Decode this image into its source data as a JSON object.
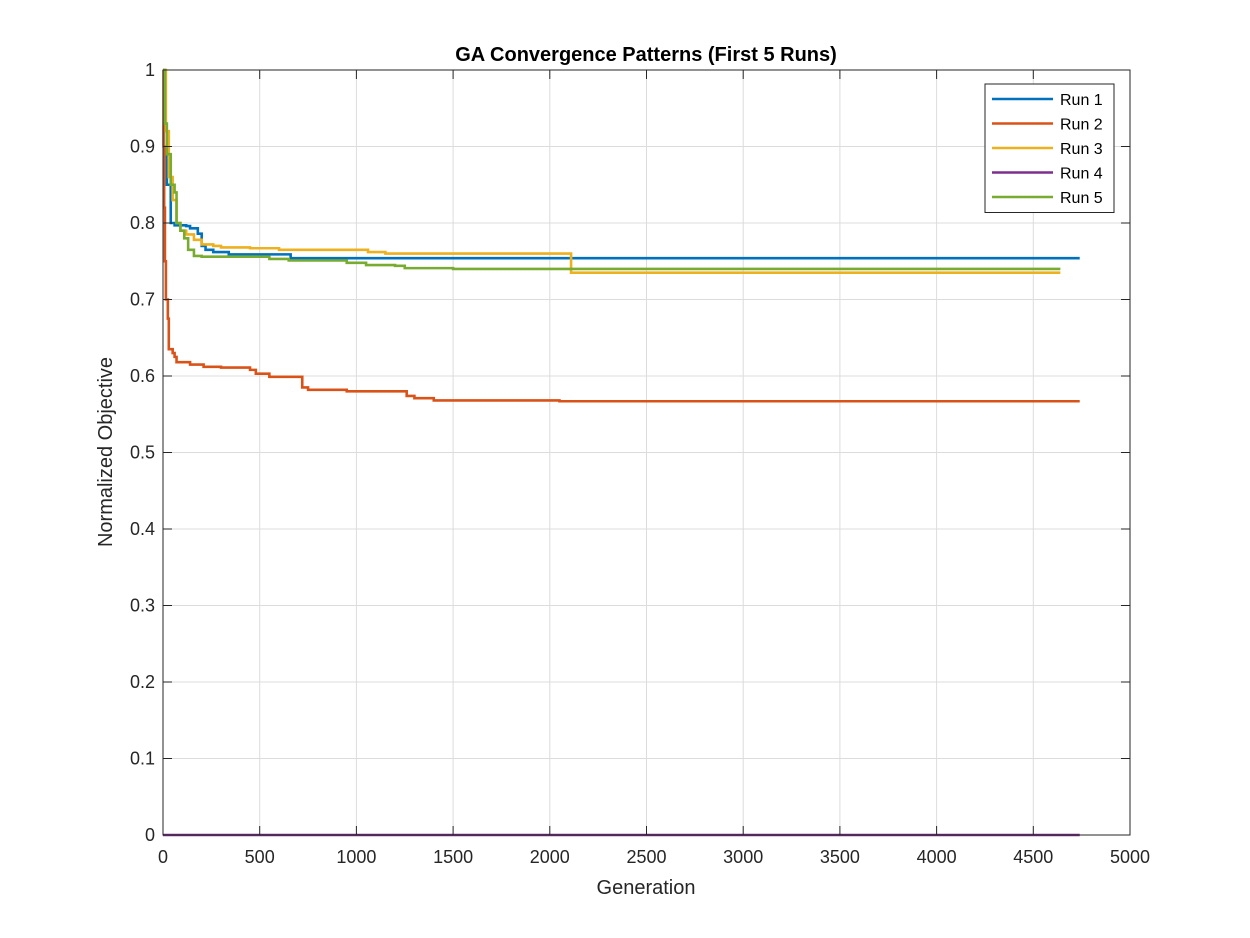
{
  "chart_data": {
    "type": "line",
    "title": "GA Convergence Patterns (First 5 Runs)",
    "xlabel": "Generation",
    "ylabel": "Normalized Objective",
    "xlim": [
      0,
      5000
    ],
    "ylim": [
      0,
      1
    ],
    "xticks": [
      "0",
      "500",
      "1000",
      "1500",
      "2000",
      "2500",
      "3000",
      "3500",
      "4000",
      "4500",
      "5000"
    ],
    "yticks": [
      "0",
      "0.1",
      "0.2",
      "0.3",
      "0.4",
      "0.5",
      "0.6",
      "0.7",
      "0.8",
      "0.9",
      "1"
    ],
    "grid": true,
    "legend_position": "top-right",
    "series": [
      {
        "name": "Run 1",
        "color": "#0072BD",
        "step": true,
        "points": [
          [
            0,
            1.0
          ],
          [
            10,
            0.92
          ],
          [
            20,
            0.85
          ],
          [
            40,
            0.8
          ],
          [
            60,
            0.797
          ],
          [
            120,
            0.796
          ],
          [
            140,
            0.793
          ],
          [
            180,
            0.786
          ],
          [
            200,
            0.77
          ],
          [
            220,
            0.765
          ],
          [
            260,
            0.762
          ],
          [
            340,
            0.759
          ],
          [
            640,
            0.759
          ],
          [
            660,
            0.754
          ],
          [
            1200,
            0.754
          ],
          [
            4740,
            0.754
          ]
        ]
      },
      {
        "name": "Run 2",
        "color": "#D95319",
        "step": true,
        "points": [
          [
            0,
            1.0
          ],
          [
            3,
            0.9
          ],
          [
            6,
            0.82
          ],
          [
            10,
            0.75
          ],
          [
            15,
            0.7
          ],
          [
            25,
            0.675
          ],
          [
            30,
            0.635
          ],
          [
            50,
            0.63
          ],
          [
            60,
            0.625
          ],
          [
            70,
            0.618
          ],
          [
            140,
            0.615
          ],
          [
            210,
            0.612
          ],
          [
            300,
            0.611
          ],
          [
            450,
            0.608
          ],
          [
            480,
            0.603
          ],
          [
            550,
            0.599
          ],
          [
            700,
            0.599
          ],
          [
            720,
            0.585
          ],
          [
            750,
            0.582
          ],
          [
            950,
            0.58
          ],
          [
            1260,
            0.574
          ],
          [
            1300,
            0.571
          ],
          [
            1400,
            0.568
          ],
          [
            2000,
            0.568
          ],
          [
            2050,
            0.567
          ],
          [
            4740,
            0.567
          ]
        ]
      },
      {
        "name": "Run 3",
        "color": "#EDB120",
        "step": true,
        "points": [
          [
            0,
            1.0
          ],
          [
            15,
            0.92
          ],
          [
            30,
            0.86
          ],
          [
            50,
            0.83
          ],
          [
            70,
            0.8
          ],
          [
            90,
            0.79
          ],
          [
            120,
            0.785
          ],
          [
            160,
            0.778
          ],
          [
            200,
            0.772
          ],
          [
            260,
            0.77
          ],
          [
            300,
            0.768
          ],
          [
            450,
            0.767
          ],
          [
            600,
            0.765
          ],
          [
            1050,
            0.765
          ],
          [
            1060,
            0.762
          ],
          [
            1150,
            0.76
          ],
          [
            2100,
            0.76
          ],
          [
            2110,
            0.735
          ],
          [
            4640,
            0.735
          ]
        ]
      },
      {
        "name": "Run 4",
        "color": "#7E2F8E",
        "step": true,
        "points": [
          [
            0,
            0.0
          ],
          [
            4740,
            0.0
          ]
        ]
      },
      {
        "name": "Run 5",
        "color": "#77AC30",
        "step": true,
        "points": [
          [
            0,
            1.0
          ],
          [
            10,
            0.93
          ],
          [
            20,
            0.89
          ],
          [
            40,
            0.85
          ],
          [
            60,
            0.84
          ],
          [
            70,
            0.8
          ],
          [
            90,
            0.79
          ],
          [
            110,
            0.78
          ],
          [
            130,
            0.765
          ],
          [
            160,
            0.757
          ],
          [
            200,
            0.756
          ],
          [
            480,
            0.756
          ],
          [
            550,
            0.753
          ],
          [
            650,
            0.751
          ],
          [
            950,
            0.748
          ],
          [
            1050,
            0.745
          ],
          [
            1200,
            0.744
          ],
          [
            1250,
            0.741
          ],
          [
            1500,
            0.74
          ],
          [
            2100,
            0.74
          ],
          [
            4640,
            0.74
          ]
        ]
      }
    ]
  }
}
